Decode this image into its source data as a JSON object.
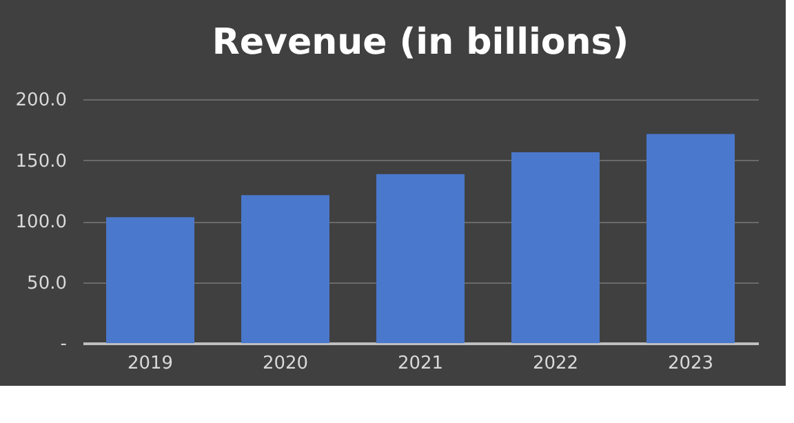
{
  "chart_data": {
    "type": "bar",
    "title": "Revenue (in billions)",
    "categories": [
      "2019",
      "2020",
      "2021",
      "2022",
      "2023"
    ],
    "values": [
      103.3,
      121.3,
      138.5,
      156.5,
      171.5
    ],
    "color": "#4a78cc",
    "ylim": [
      0,
      200
    ],
    "yticks": [
      {
        "value": 0,
        "label": "-"
      },
      {
        "value": 50,
        "label": "50.0"
      },
      {
        "value": 100,
        "label": "100.0"
      },
      {
        "value": 150,
        "label": "150.0"
      },
      {
        "value": 200,
        "label": "200.0"
      }
    ],
    "grid": "y"
  }
}
